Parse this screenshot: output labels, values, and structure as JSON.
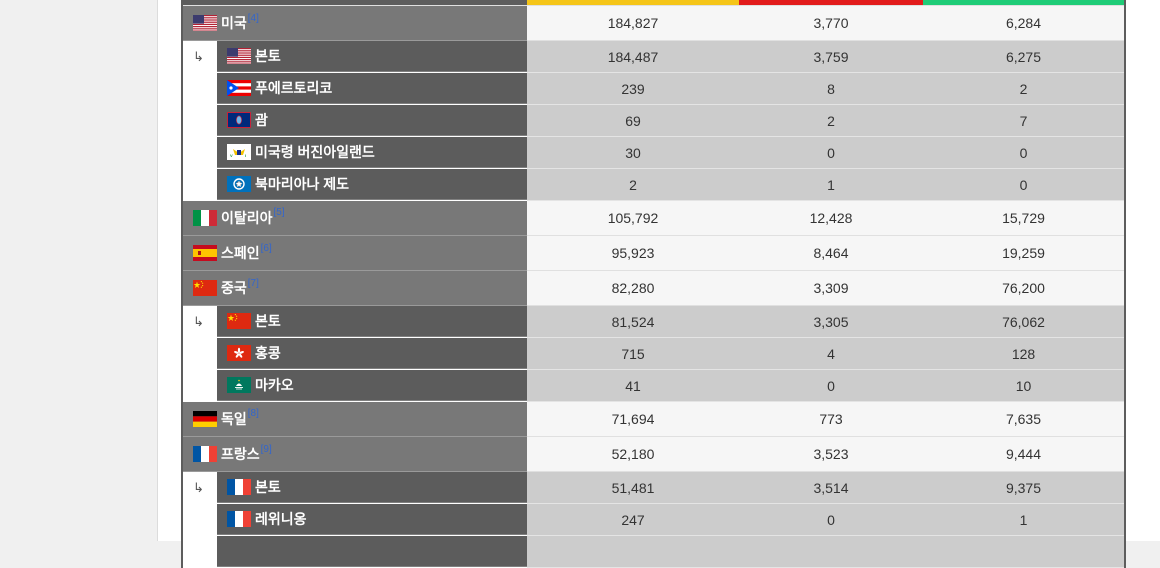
{
  "rows": [
    {
      "kind": "country",
      "flag": "us-flag-icon",
      "name": "미국",
      "ref": "[4]",
      "values": [
        "184,827",
        "3,770",
        "6,284"
      ]
    },
    {
      "kind": "sub",
      "first": true,
      "flag": "us-flag-icon",
      "name": "본토",
      "values": [
        "184,487",
        "3,759",
        "6,275"
      ]
    },
    {
      "kind": "sub",
      "flag": "puerto-rico-flag-icon",
      "name": "푸에르토리코",
      "values": [
        "239",
        "8",
        "2"
      ]
    },
    {
      "kind": "sub",
      "flag": "guam-flag-icon",
      "name": "괌",
      "values": [
        "69",
        "2",
        "7"
      ]
    },
    {
      "kind": "sub",
      "flag": "usvi-flag-icon",
      "name": "미국령 버진아일랜드",
      "values": [
        "30",
        "0",
        "0"
      ]
    },
    {
      "kind": "sub",
      "flag": "northern-mariana-flag-icon",
      "name": "북마리아나 제도",
      "values": [
        "2",
        "1",
        "0"
      ]
    },
    {
      "kind": "country",
      "flag": "italy-flag-icon",
      "name": "이탈리아",
      "ref": "[5]",
      "values": [
        "105,792",
        "12,428",
        "15,729"
      ]
    },
    {
      "kind": "country",
      "flag": "spain-flag-icon",
      "name": "스페인",
      "ref": "[6]",
      "values": [
        "95,923",
        "8,464",
        "19,259"
      ]
    },
    {
      "kind": "country",
      "flag": "china-flag-icon",
      "name": "중국",
      "ref": "[7]",
      "values": [
        "82,280",
        "3,309",
        "76,200"
      ]
    },
    {
      "kind": "sub",
      "first": true,
      "flag": "china-flag-icon",
      "name": "본토",
      "values": [
        "81,524",
        "3,305",
        "76,062"
      ]
    },
    {
      "kind": "sub",
      "flag": "hong-kong-flag-icon",
      "name": "홍콩",
      "values": [
        "715",
        "4",
        "128"
      ]
    },
    {
      "kind": "sub",
      "flag": "macau-flag-icon",
      "name": "마카오",
      "values": [
        "41",
        "0",
        "10"
      ]
    },
    {
      "kind": "country",
      "flag": "germany-flag-icon",
      "name": "독일",
      "ref": "[8]",
      "values": [
        "71,694",
        "773",
        "7,635"
      ]
    },
    {
      "kind": "country",
      "flag": "france-flag-icon",
      "name": "프랑스",
      "ref": "[9]",
      "values": [
        "52,180",
        "3,523",
        "9,444"
      ]
    },
    {
      "kind": "sub",
      "first": true,
      "flag": "france-flag-icon",
      "name": "본토",
      "values": [
        "51,481",
        "3,514",
        "9,375"
      ]
    },
    {
      "kind": "sub",
      "flag": "france-flag-icon",
      "name": "레위니옹",
      "values": [
        "247",
        "0",
        "1"
      ]
    },
    {
      "kind": "sub",
      "flag": "",
      "name": "",
      "values": [
        "",
        "",
        ""
      ]
    }
  ],
  "indent_marker": "↳",
  "colors": {
    "confirmed": "#f5c518",
    "deaths": "#e21b1b",
    "recovered": "#1fcc77"
  }
}
